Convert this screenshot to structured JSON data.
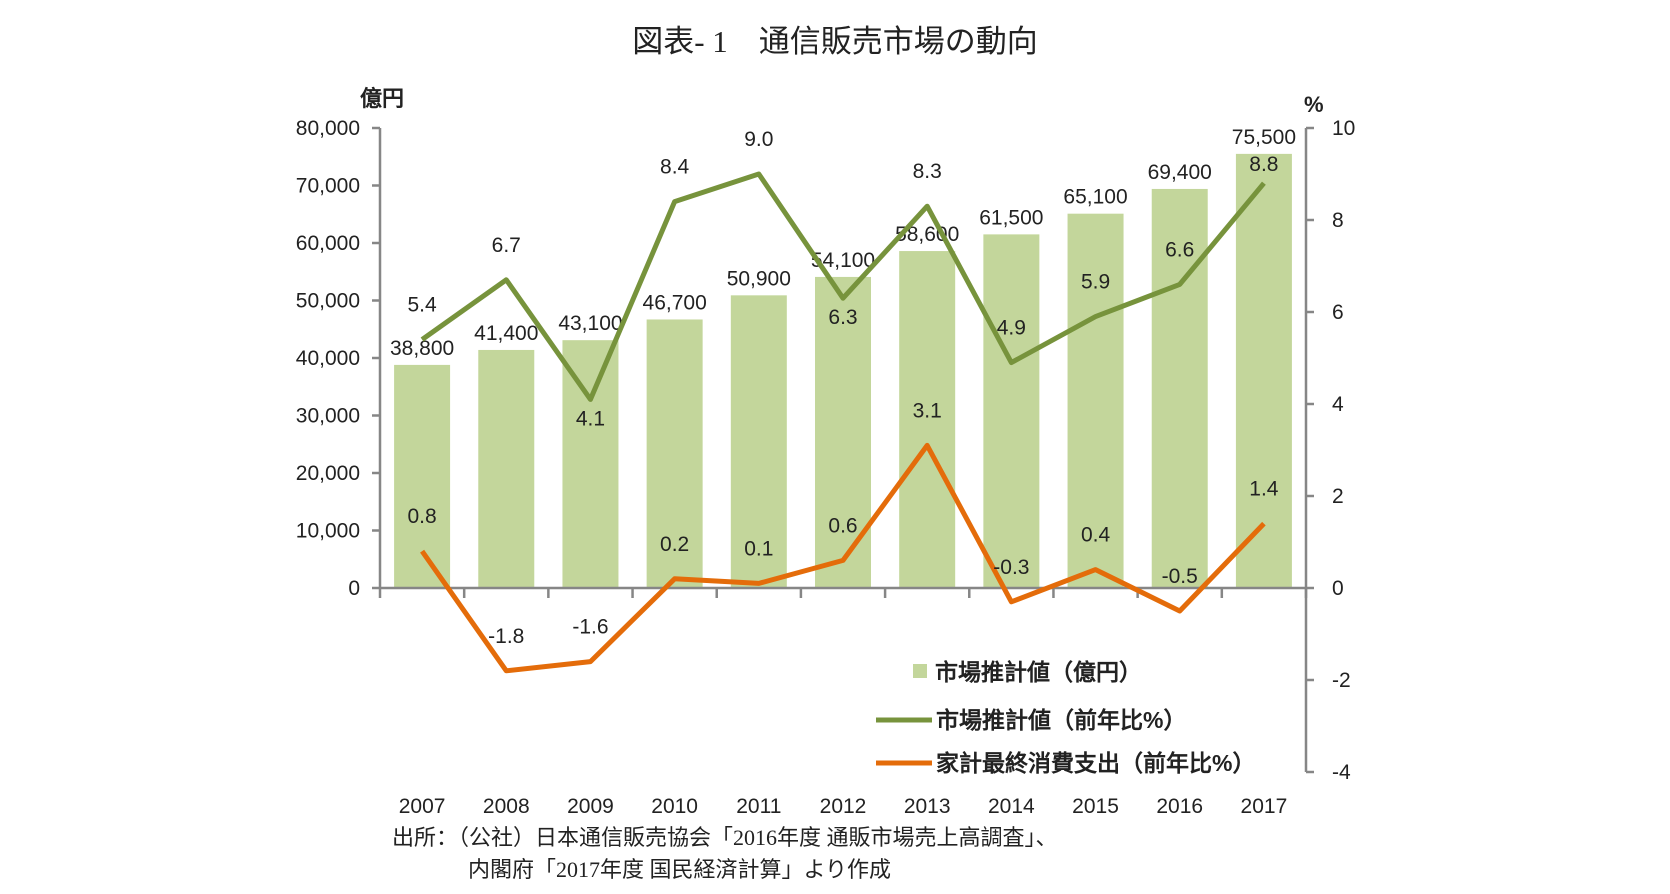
{
  "title": "図表- 1　通信販売市場の動向",
  "source_note": {
    "line1": "出所：（公社）日本通信販売協会「2016年度 通販市場売上高調査」、",
    "line2": "内閣府「2017年度 国民経済計算」より作成"
  },
  "chart_data": {
    "type": "bar+line",
    "categories": [
      "2007",
      "2008",
      "2009",
      "2010",
      "2011",
      "2012",
      "2013",
      "2014",
      "2015",
      "2016",
      "2017"
    ],
    "left_axis": {
      "label": "億円",
      "range": [
        0,
        80000
      ],
      "ticks": [
        0,
        10000,
        20000,
        30000,
        40000,
        50000,
        60000,
        70000,
        80000
      ],
      "tick_labels": [
        "0",
        "10,000",
        "20,000",
        "30,000",
        "40,000",
        "50,000",
        "60,000",
        "70,000",
        "80,000"
      ]
    },
    "right_axis": {
      "label": "%",
      "range": [
        -4,
        10
      ],
      "ticks": [
        -4,
        -2,
        0,
        2,
        4,
        6,
        8,
        10
      ],
      "tick_labels": [
        "-4",
        "-2",
        "0",
        "2",
        "4",
        "6",
        "8",
        "10"
      ]
    },
    "grid": false,
    "legend_position": "bottom-right",
    "series": [
      {
        "name": "市場推計値（億円）",
        "type": "bar",
        "axis": "left",
        "color": "#c3d69b",
        "values": [
          38800,
          41400,
          43100,
          46700,
          50900,
          54100,
          58600,
          61500,
          65100,
          69400,
          75500
        ],
        "labels": [
          "38,800",
          "41,400",
          "43,100",
          "46,700",
          "50,900",
          "54,100",
          "58,600",
          "61,500",
          "65,100",
          "69,400",
          "75,500"
        ]
      },
      {
        "name": "市場推計値（前年比%）",
        "type": "line",
        "axis": "right",
        "color": "#77933c",
        "values": [
          5.4,
          6.7,
          4.1,
          8.4,
          9.0,
          6.3,
          8.3,
          4.9,
          5.9,
          6.6,
          8.8
        ],
        "labels": [
          "5.4",
          "6.7",
          "4.1",
          "8.4",
          "9.0",
          "6.3",
          "8.3",
          "4.9",
          "5.9",
          "6.6",
          "8.8"
        ]
      },
      {
        "name": "家計最終消費支出（前年比%）",
        "type": "line",
        "axis": "right",
        "color": "#e46c0a",
        "values": [
          0.8,
          -1.8,
          -1.6,
          0.2,
          0.1,
          0.6,
          3.1,
          -0.3,
          0.4,
          -0.5,
          1.4
        ],
        "labels": [
          "0.8",
          "-1.8",
          "-1.6",
          "0.2",
          "0.1",
          "0.6",
          "3.1",
          "-0.3",
          "0.4",
          "-0.5",
          "1.4"
        ]
      }
    ]
  }
}
